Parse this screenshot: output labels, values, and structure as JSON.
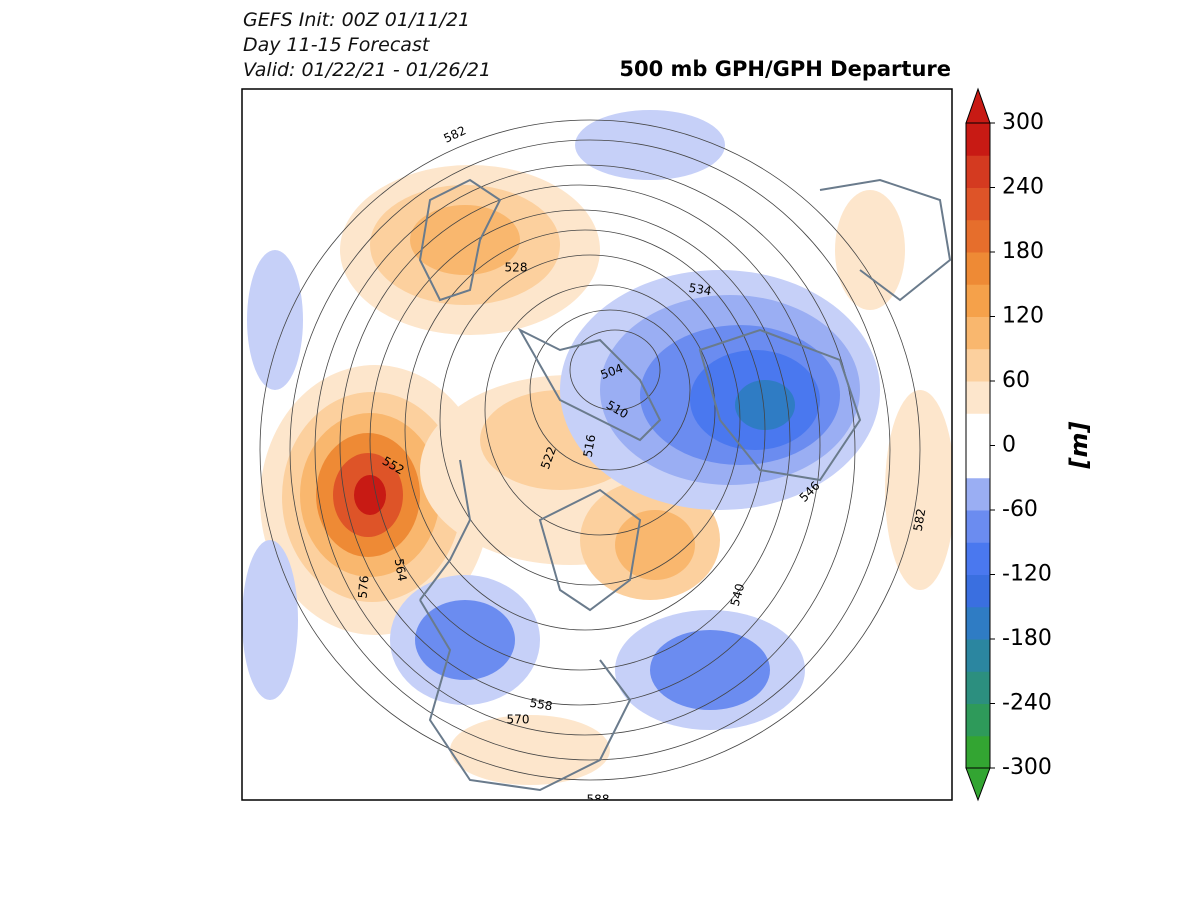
{
  "header": {
    "lines": [
      "GEFS Init: 00Z 01/11/21",
      "Day 11-15 Forecast",
      "Valid: 01/22/21 - 01/26/21"
    ],
    "title": "500 mb GPH/GPH Departure"
  },
  "contour_labels": [
    582,
    528,
    534,
    504,
    510,
    516,
    522,
    552,
    564,
    576,
    546,
    540,
    582,
    558,
    570,
    588
  ],
  "colorbar": {
    "label": "[m]",
    "range": [
      -300,
      300
    ],
    "ticks": [
      -300,
      -240,
      -180,
      -120,
      -60,
      0,
      60,
      120,
      180,
      240,
      300
    ],
    "colors": [
      "#33a532",
      "#2e9a5a",
      "#2c8f7f",
      "#2b86a0",
      "#2f7cc4",
      "#3a6fe0",
      "#4a78ef",
      "#6b8cf0",
      "#9aaef3",
      "#ffffff",
      "#ffffff",
      "#fde6cc",
      "#fcd09e",
      "#f9b76e",
      "#f5a14a",
      "#ee8a35",
      "#e66e2c",
      "#de5428",
      "#d43a20",
      "#c81a14"
    ]
  }
}
